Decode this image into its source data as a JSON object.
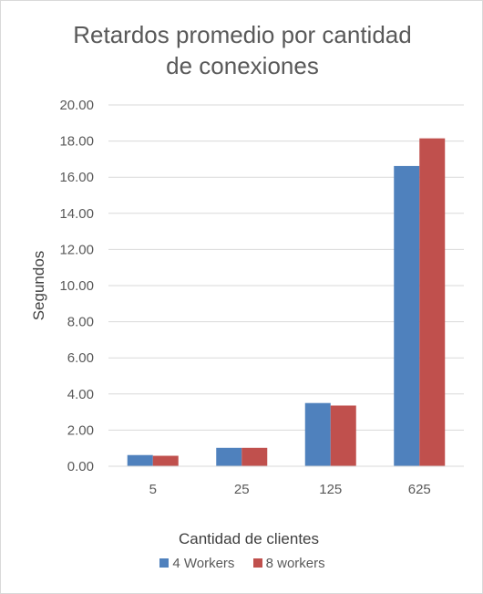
{
  "chart_data": {
    "type": "bar",
    "title": "Retardos promedio por cantidad\nde conexiones",
    "xlabel": "Cantidad de clientes",
    "ylabel": "Segundos",
    "categories": [
      "5",
      "25",
      "125",
      "625"
    ],
    "series": [
      {
        "name": "4 Workers",
        "color": "#4f81bd",
        "values": [
          0.62,
          1.02,
          3.5,
          16.62
        ]
      },
      {
        "name": "8 workers",
        "color": "#c0504d",
        "values": [
          0.58,
          1.02,
          3.36,
          18.15
        ]
      }
    ],
    "ylim": [
      0,
      20
    ],
    "yticks": [
      "0.00",
      "2.00",
      "4.00",
      "6.00",
      "8.00",
      "10.00",
      "12.00",
      "14.00",
      "16.00",
      "18.00",
      "20.00"
    ],
    "grid": true,
    "legend": "bottom"
  }
}
